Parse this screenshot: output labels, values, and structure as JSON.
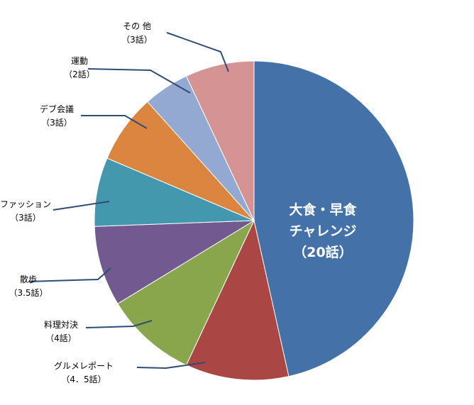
{
  "chart_data": {
    "type": "pie",
    "categories": [
      "大食・早食チャレンジ",
      "グルメレポート",
      "料理対決",
      "散歩",
      "ファッション",
      "デブ会議",
      "運動",
      "その他"
    ],
    "values": [
      20,
      4.5,
      4,
      3.5,
      3,
      3,
      2,
      3
    ],
    "labels": [
      [
        "大食・早食",
        "チャレンジ",
        "（20話）"
      ],
      [
        "グルメレポート",
        "（4．5話）"
      ],
      [
        "料理対決",
        "（4話）"
      ],
      [
        "散歩",
        "（3.5話）"
      ],
      [
        "ファッション",
        "（3話）"
      ],
      [
        "デブ会議",
        "（3話）"
      ],
      [
        "運動",
        "（2話）"
      ],
      [
        "その 他",
        "（3話）"
      ]
    ],
    "colors": [
      "#4472a8",
      "#aa4644",
      "#8aa64c",
      "#725a91",
      "#4398ad",
      "#dc8540",
      "#93a9d1",
      "#d59493"
    ],
    "leader_line_color": "#2f4d74",
    "start_angle": "top",
    "direction": "clockwise",
    "legend": "none"
  }
}
